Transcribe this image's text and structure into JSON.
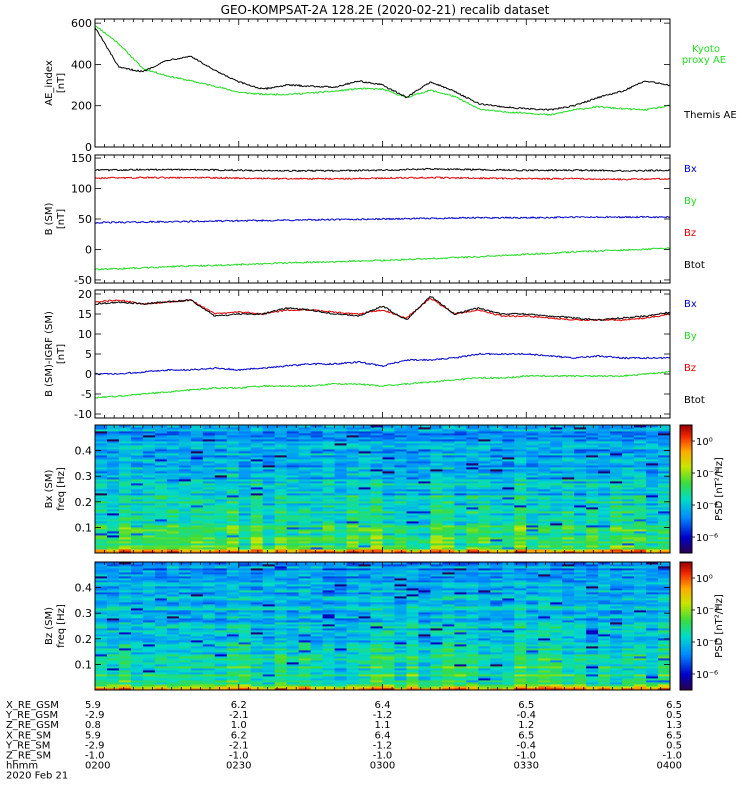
{
  "title": "GEO-KOMPSAT-2A 128.2E (2020-02-21) recalib dataset",
  "colors": {
    "black": "#000000",
    "red": "#e00000",
    "green": "#22dd22",
    "blue": "#0000cc",
    "frame": "#000000"
  },
  "chart_data": [
    {
      "type": "line",
      "panel": "ae",
      "ylabel": [
        "AE_index",
        "[nT]"
      ],
      "ylim": [
        0,
        620
      ],
      "yticks": [
        "0",
        "200",
        "400",
        "600"
      ],
      "ytick_values": [
        0,
        200,
        400,
        600
      ],
      "x": [
        0,
        5,
        10,
        15,
        20,
        25,
        30,
        35,
        40,
        45,
        50,
        55,
        60,
        65,
        70,
        75,
        80,
        85,
        90,
        95,
        100,
        105,
        110,
        115,
        120
      ],
      "series": [
        {
          "name": "Kyoto proxy AE",
          "legend": [
            "Kyoto",
            "proxy AE"
          ],
          "color": "green",
          "values": [
            590,
            500,
            380,
            345,
            320,
            295,
            265,
            255,
            255,
            262,
            270,
            283,
            280,
            240,
            275,
            245,
            185,
            170,
            165,
            155,
            180,
            195,
            185,
            180,
            200
          ]
        },
        {
          "name": "Themis AE",
          "legend": [
            "Themis AE"
          ],
          "color": "black",
          "values": [
            580,
            385,
            365,
            420,
            440,
            370,
            315,
            280,
            300,
            295,
            290,
            320,
            300,
            240,
            315,
            270,
            210,
            195,
            185,
            180,
            200,
            240,
            270,
            320,
            300
          ]
        }
      ]
    },
    {
      "type": "line",
      "panel": "b_sm",
      "ylabel": [
        "B (SM)",
        "[nT]"
      ],
      "ylim": [
        -55,
        155
      ],
      "yticks": [
        "-50",
        "0",
        "50",
        "100",
        "150"
      ],
      "ytick_values": [
        -50,
        0,
        50,
        100,
        150
      ],
      "x": [
        0,
        10,
        20,
        30,
        40,
        50,
        60,
        70,
        80,
        90,
        100,
        110,
        120
      ],
      "series": [
        {
          "name": "Bx",
          "color": "blue",
          "values": [
            44,
            45,
            46,
            47,
            48,
            49,
            50,
            51,
            52,
            52,
            53,
            53,
            53
          ]
        },
        {
          "name": "By",
          "color": "green",
          "values": [
            -33,
            -30,
            -27,
            -25,
            -22,
            -20,
            -18,
            -15,
            -12,
            -8,
            -4,
            -1,
            2
          ]
        },
        {
          "name": "Bz",
          "color": "red",
          "values": [
            117,
            118,
            118,
            117,
            116,
            116,
            117,
            118,
            117,
            116,
            116,
            115,
            116
          ]
        },
        {
          "name": "Btot",
          "color": "black",
          "values": [
            130,
            131,
            131,
            130,
            129,
            129,
            130,
            132,
            131,
            130,
            130,
            129,
            130
          ]
        }
      ],
      "legend": [
        "Bx",
        "By",
        "Bz",
        "Btot"
      ]
    },
    {
      "type": "line",
      "panel": "b_minus_igrf",
      "ylabel": [
        "B (SM)-IGRF (SM)",
        "[nT]"
      ],
      "ylim": [
        -11,
        21
      ],
      "yticks": [
        "-10",
        "-5",
        "0",
        "5",
        "10",
        "15",
        "20"
      ],
      "ytick_values": [
        -10,
        -5,
        0,
        5,
        10,
        15,
        20
      ],
      "x": [
        0,
        5,
        10,
        15,
        20,
        25,
        30,
        35,
        40,
        45,
        50,
        55,
        60,
        65,
        70,
        75,
        80,
        85,
        90,
        95,
        100,
        105,
        110,
        115,
        120
      ],
      "series": [
        {
          "name": "Bx",
          "color": "blue",
          "values": [
            0,
            0,
            0.5,
            1,
            1,
            1.5,
            1,
            1.5,
            2,
            2.5,
            2.5,
            3,
            2,
            3.5,
            3.5,
            4,
            5,
            5,
            5,
            4.5,
            4,
            4.5,
            4,
            4,
            4
          ]
        },
        {
          "name": "By",
          "color": "green",
          "values": [
            -6,
            -5.5,
            -5,
            -4.5,
            -4,
            -3.5,
            -3.5,
            -3,
            -3,
            -3,
            -2.5,
            -2.5,
            -3,
            -2.5,
            -2,
            -1.5,
            -1,
            -1,
            -0.5,
            -0.5,
            -0.5,
            -0.5,
            -0.5,
            0,
            0.5
          ]
        },
        {
          "name": "Bz",
          "color": "red",
          "values": [
            18,
            18.5,
            17.5,
            18,
            18.5,
            15,
            15.5,
            15,
            16,
            16,
            15.5,
            15,
            16,
            14,
            19,
            15,
            16,
            14.5,
            14.5,
            14,
            13.5,
            13.5,
            13.5,
            14,
            15
          ]
        },
        {
          "name": "Btot",
          "color": "black",
          "values": [
            17.5,
            18,
            17.5,
            18,
            18.5,
            14.5,
            15,
            15,
            16.5,
            16,
            15,
            14.5,
            17,
            13.5,
            19.5,
            15,
            16.5,
            15,
            15,
            14.5,
            14,
            13.5,
            14,
            14.5,
            15.5
          ]
        }
      ],
      "legend": [
        "Bx",
        "By",
        "Bz",
        "Btot"
      ]
    },
    {
      "type": "heatmap",
      "panel": "spec_bx",
      "ylabel": [
        "Bx (SM)",
        "freq [Hz]"
      ],
      "ylim": [
        0,
        0.5
      ],
      "yticks": [
        "0.1",
        "0.2",
        "0.3",
        "0.4"
      ],
      "ytick_values": [
        0.1,
        0.2,
        0.3,
        0.4
      ],
      "colorbar_label": "PSD [nT²/Hz]",
      "colorbar_ticks": [
        "10⁰",
        "10⁻²",
        "10⁻⁴",
        "10⁻⁶"
      ],
      "colorbar_tick_values": [
        0,
        -2,
        -4,
        -6
      ],
      "colorbar_range": [
        -7,
        1
      ]
    },
    {
      "type": "heatmap",
      "panel": "spec_bz",
      "ylabel": [
        "Bz (SM)",
        "freq [Hz]"
      ],
      "ylim": [
        0,
        0.5
      ],
      "yticks": [
        "0.1",
        "0.2",
        "0.3",
        "0.4"
      ],
      "ytick_values": [
        0.1,
        0.2,
        0.3,
        0.4
      ],
      "colorbar_label": "PSD [nT²/Hz]",
      "colorbar_ticks": [
        "10⁰",
        "10⁻²",
        "10⁻⁴",
        "10⁻⁶"
      ],
      "colorbar_tick_values": [
        0,
        -2,
        -4,
        -6
      ],
      "colorbar_range": [
        -7,
        1
      ]
    }
  ],
  "time_axis": {
    "range_minutes": [
      0,
      120
    ],
    "tick_minutes": [
      0,
      30,
      60,
      90,
      120
    ],
    "rows": [
      {
        "label": "X_RE_GSM",
        "values": [
          "5.9",
          "6.2",
          "6.4",
          "6.5",
          "6.5"
        ]
      },
      {
        "label": "Y_RE_GSM",
        "values": [
          "-2.9",
          "-2.1",
          "-1.2",
          "-0.4",
          "0.5"
        ]
      },
      {
        "label": "Z_RE_GSM",
        "values": [
          "0.8",
          "1.0",
          "1.1",
          "1.2",
          "1.3"
        ]
      },
      {
        "label": "X_RE_SM",
        "values": [
          "5.9",
          "6.2",
          "6.4",
          "6.5",
          "6.5"
        ]
      },
      {
        "label": "Y_RE_SM",
        "values": [
          "-2.9",
          "-2.1",
          "-1.2",
          "-0.4",
          "0.5"
        ]
      },
      {
        "label": "Z_RE_SM",
        "values": [
          "-1.0",
          "-1.0",
          "-1.0",
          "-1.0",
          "-1.0"
        ]
      },
      {
        "label": "hhmm",
        "values": [
          "0200",
          "0230",
          "0300",
          "0330",
          "0400"
        ]
      }
    ],
    "date": "2020 Feb 21"
  }
}
